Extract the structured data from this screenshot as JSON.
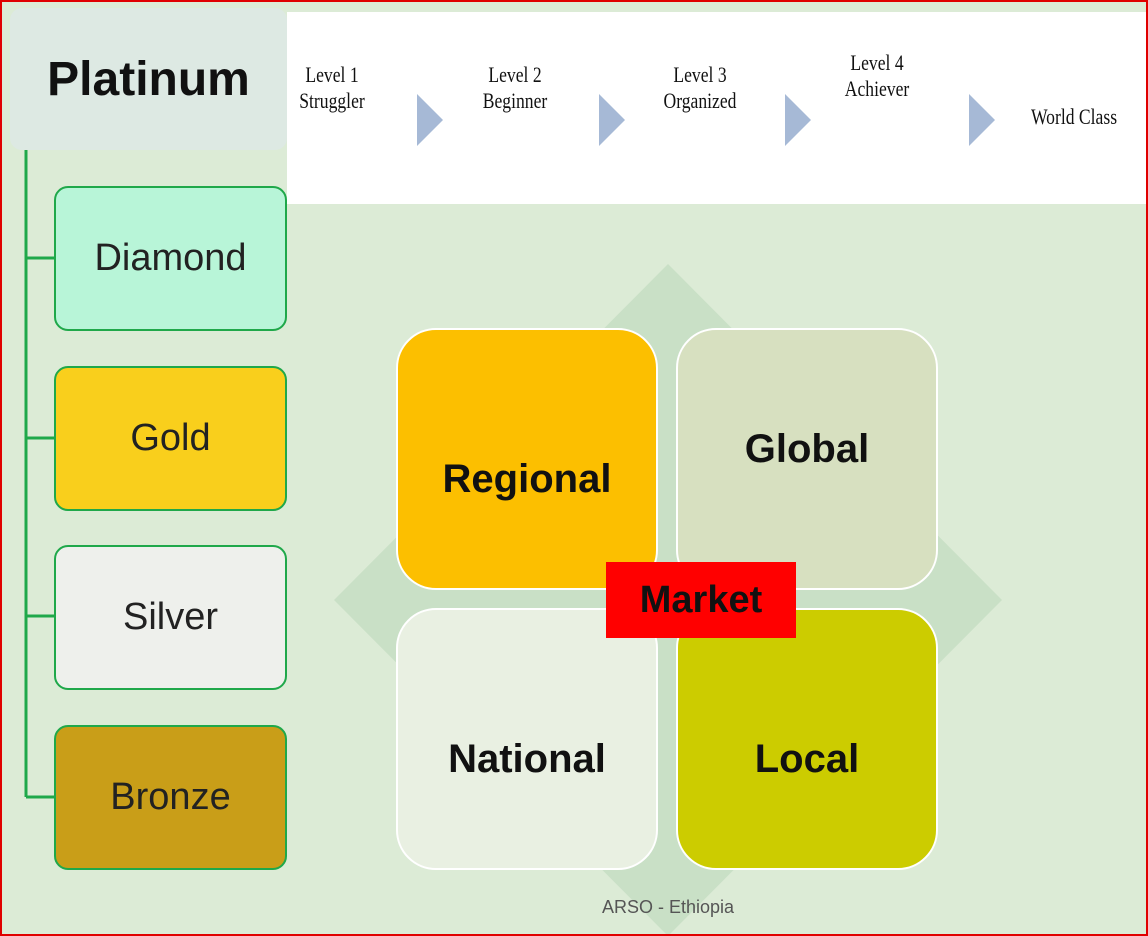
{
  "hierarchy": {
    "root": "Platinum",
    "levels": [
      "Diamond",
      "Gold",
      "Silver",
      "Bronze"
    ]
  },
  "progression": [
    {
      "level": "Level 1",
      "name": "Struggler"
    },
    {
      "level": "Level 2",
      "name": "Beginner"
    },
    {
      "level": "Level 3",
      "name": "Organized"
    },
    {
      "level": "Level 4",
      "name": "Achiever"
    },
    {
      "level": null,
      "name": "World Class"
    }
  ],
  "matrix": {
    "center": "Market",
    "quadrants": [
      "Regional",
      "Global",
      "National",
      "Local"
    ]
  },
  "footer": "ARSO - Ethiopia"
}
